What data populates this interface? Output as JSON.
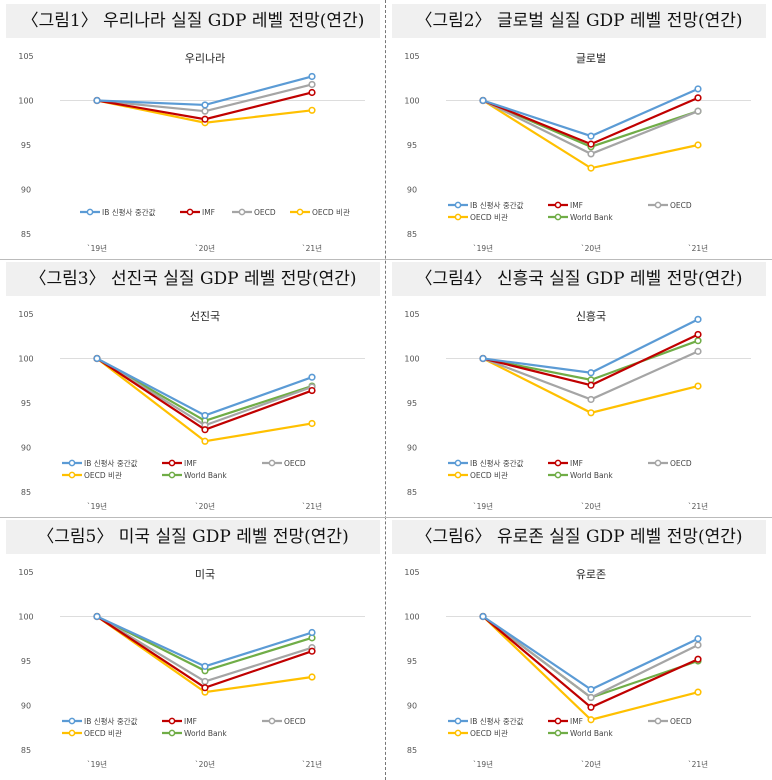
{
  "colors": {
    "IB 신평사 중간값": "#5b9bd5",
    "IMF": "#c00000",
    "OECD": "#a5a5a5",
    "OECD 비관": "#ffc000",
    "World Bank": "#70ad47"
  },
  "chart_data": [
    {
      "type": "line",
      "heading": "〈그림1〉 우리나라 실질 GDP 레벨 전망(연간)",
      "title": "우리나라",
      "categories": [
        "`19년",
        "`20년",
        "`21년"
      ],
      "ylim": [
        85,
        105
      ],
      "yticks": [
        85,
        90,
        95,
        100,
        105
      ],
      "series": [
        {
          "name": "IB 신평사 중간값",
          "values": [
            100,
            99.5,
            102.7
          ]
        },
        {
          "name": "IMF",
          "values": [
            100,
            97.9,
            100.9
          ]
        },
        {
          "name": "OECD",
          "values": [
            100,
            98.8,
            101.8
          ]
        },
        {
          "name": "OECD 비관",
          "values": [
            100,
            97.5,
            98.9
          ]
        }
      ]
    },
    {
      "type": "line",
      "heading": "〈그림2〉 글로벌 실질 GDP 레벨 전망(연간)",
      "title": "글로벌",
      "categories": [
        "`19년",
        "`20년",
        "`21년"
      ],
      "ylim": [
        85,
        105
      ],
      "yticks": [
        85,
        90,
        95,
        100,
        105
      ],
      "series": [
        {
          "name": "IB 신평사 중간값",
          "values": [
            100,
            96.0,
            101.3
          ]
        },
        {
          "name": "IMF",
          "values": [
            100,
            95.1,
            100.3
          ]
        },
        {
          "name": "OECD",
          "values": [
            100,
            94.0,
            98.8
          ]
        },
        {
          "name": "OECD 비관",
          "values": [
            100,
            92.4,
            95.0
          ]
        },
        {
          "name": "World Bank",
          "values": [
            100,
            94.8,
            98.8
          ]
        }
      ]
    },
    {
      "type": "line",
      "heading": "〈그림3〉 선진국 실질 GDP 레벨 전망(연간)",
      "title": "선진국",
      "categories": [
        "`19년",
        "`20년",
        "`21년"
      ],
      "ylim": [
        85,
        105
      ],
      "yticks": [
        85,
        90,
        95,
        100,
        105
      ],
      "series": [
        {
          "name": "IB 신평사 중간값",
          "values": [
            100,
            93.6,
            97.9
          ]
        },
        {
          "name": "IMF",
          "values": [
            100,
            92.0,
            96.4
          ]
        },
        {
          "name": "OECD",
          "values": [
            100,
            92.5,
            96.8
          ]
        },
        {
          "name": "OECD 비관",
          "values": [
            100,
            90.7,
            92.7
          ]
        },
        {
          "name": "World Bank",
          "values": [
            100,
            93.0,
            96.9
          ]
        }
      ]
    },
    {
      "type": "line",
      "heading": "〈그림4〉 신흥국 실질 GDP 레벨 전망(연간)",
      "title": "신흥국",
      "categories": [
        "`19년",
        "`20년",
        "`21년"
      ],
      "ylim": [
        85,
        105
      ],
      "yticks": [
        85,
        90,
        95,
        100,
        105
      ],
      "series": [
        {
          "name": "IB 신평사 중간값",
          "values": [
            100,
            98.4,
            104.4
          ]
        },
        {
          "name": "IMF",
          "values": [
            100,
            97.0,
            102.7
          ]
        },
        {
          "name": "OECD",
          "values": [
            100,
            95.4,
            100.8
          ]
        },
        {
          "name": "OECD 비관",
          "values": [
            100,
            93.9,
            96.9
          ]
        },
        {
          "name": "World Bank",
          "values": [
            100,
            97.6,
            102.0
          ]
        }
      ]
    },
    {
      "type": "line",
      "heading": "〈그림5〉 미국 실질 GDP 레벨 전망(연간)",
      "title": "미국",
      "categories": [
        "`19년",
        "`20년",
        "`21년"
      ],
      "ylim": [
        85,
        105
      ],
      "yticks": [
        85,
        90,
        95,
        100,
        105
      ],
      "series": [
        {
          "name": "IB 신평사 중간값",
          "values": [
            100,
            94.4,
            98.2
          ]
        },
        {
          "name": "IMF",
          "values": [
            100,
            92.0,
            96.1
          ]
        },
        {
          "name": "OECD",
          "values": [
            100,
            92.7,
            96.5
          ]
        },
        {
          "name": "OECD 비관",
          "values": [
            100,
            91.5,
            93.2
          ]
        },
        {
          "name": "World Bank",
          "values": [
            100,
            93.9,
            97.6
          ]
        }
      ]
    },
    {
      "type": "line",
      "heading": "〈그림6〉 유로존 실질 GDP 레벨 전망(연간)",
      "title": "유로존",
      "categories": [
        "`19년",
        "`20년",
        "`21년"
      ],
      "ylim": [
        85,
        105
      ],
      "yticks": [
        85,
        90,
        95,
        100,
        105
      ],
      "series": [
        {
          "name": "IB 신평사 중간값",
          "values": [
            100,
            91.8,
            97.5
          ]
        },
        {
          "name": "IMF",
          "values": [
            100,
            89.8,
            95.2
          ]
        },
        {
          "name": "OECD",
          "values": [
            100,
            90.9,
            96.8
          ]
        },
        {
          "name": "OECD 비관",
          "values": [
            100,
            88.4,
            91.5
          ]
        },
        {
          "name": "World Bank",
          "values": [
            100,
            90.9,
            95.0
          ]
        }
      ]
    }
  ]
}
